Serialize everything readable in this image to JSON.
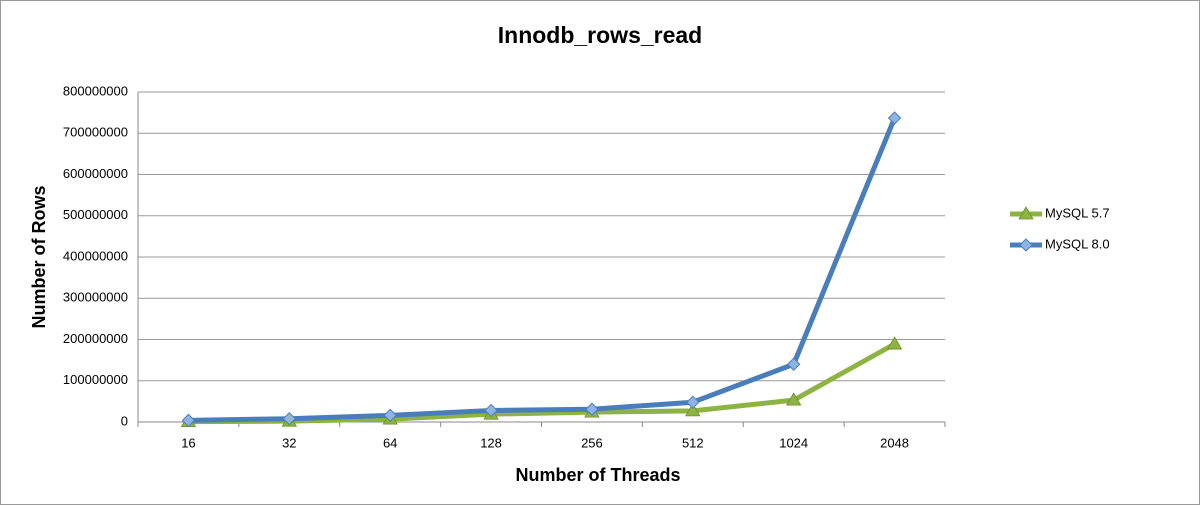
{
  "chart_data": {
    "type": "line",
    "title": "Innodb_rows_read",
    "x_label": "Number of Threads",
    "y_label": "Number of Rows",
    "categories": [
      "16",
      "32",
      "64",
      "128",
      "256",
      "512",
      "1024",
      "2048"
    ],
    "series": [
      {
        "name": "MySQL 5.7",
        "color": "#8db443",
        "marker": "triangle",
        "values": [
          1000000,
          2000000,
          7000000,
          19000000,
          24000000,
          27000000,
          53000000,
          189000000
        ]
      },
      {
        "name": "MySQL 8.0",
        "color": "#4a7ebb",
        "marker": "diamond",
        "values": [
          4000000,
          8000000,
          16000000,
          28000000,
          31000000,
          48000000,
          140000000,
          737000000
        ]
      }
    ],
    "ylim": [
      0,
      800000000
    ],
    "yticks": [
      0,
      100000000,
      200000000,
      300000000,
      400000000,
      500000000,
      600000000,
      700000000,
      800000000
    ],
    "grid": true,
    "legend": "right"
  }
}
